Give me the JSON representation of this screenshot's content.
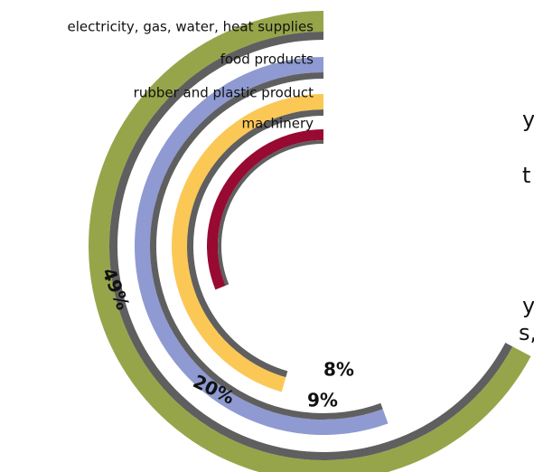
{
  "left_edge_fragments": {
    "line1": "y",
    "line2": "t",
    "line3": "y",
    "line4": "s,"
  },
  "chart_data": {
    "type": "radial-bar",
    "series": [
      {
        "name": "electricity, gas, water, heat supplies",
        "value": 49,
        "color": "#97a54a"
      },
      {
        "name": "food products",
        "value": 20,
        "color": "#8e9ad1"
      },
      {
        "name": "rubber and plastic product",
        "value": 9,
        "color": "#fbc856"
      },
      {
        "name": "machinery",
        "value": 8,
        "color": "#980a32"
      }
    ],
    "value_labels": [
      "49%",
      "20%",
      "9%",
      "8%"
    ],
    "track_color": "#5f5f5f"
  }
}
